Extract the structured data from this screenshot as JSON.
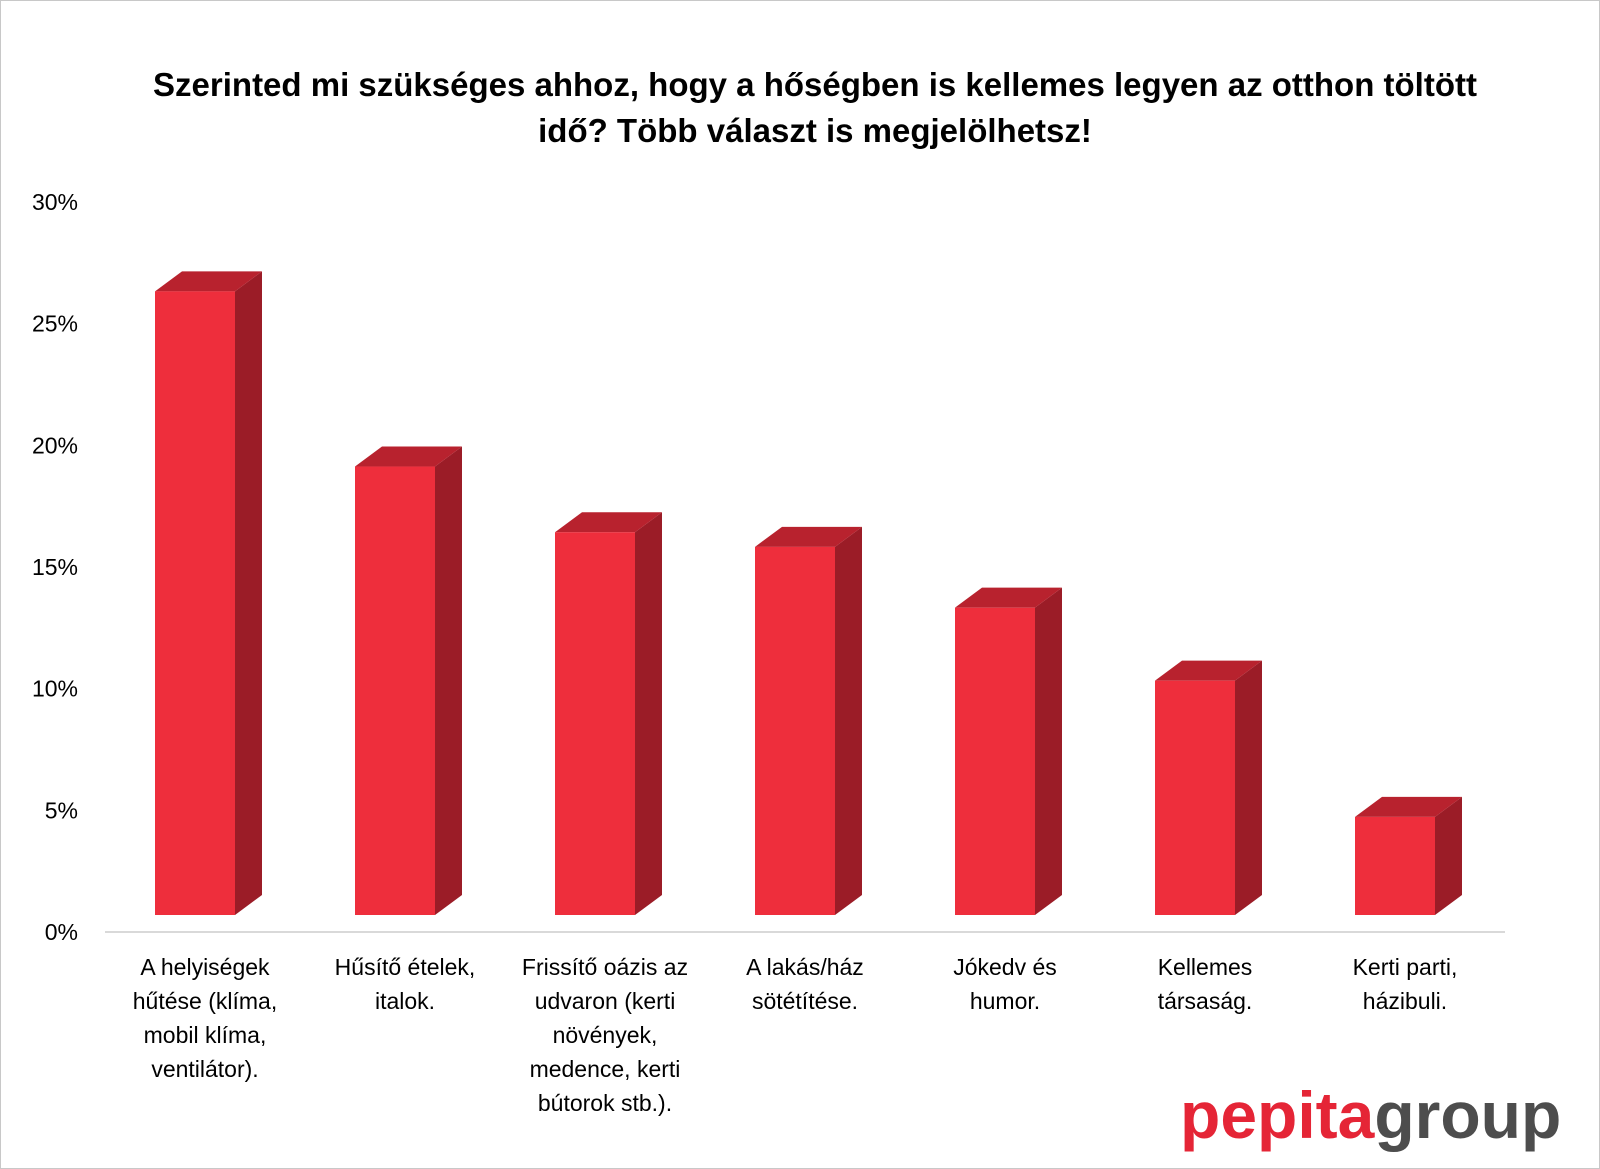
{
  "chart_data": {
    "type": "bar",
    "title": "Szerinted mi szükséges ahhoz, hogy a hőségben is kellemes legyen az otthon töltött idő? Több választ is megjelölhetsz!",
    "categories": [
      [
        "A helyiségek",
        "hűtése (klíma,",
        "mobil klíma,",
        "ventilátor)."
      ],
      [
        "Hűsítő ételek,",
        "italok."
      ],
      [
        "Frissítő oázis az",
        "udvaron (kerti",
        "növények,",
        "medence, kerti",
        "bútorok stb.)."
      ],
      [
        "A lakás/ház",
        "sötétítése."
      ],
      [
        "Jókedv és",
        "humor."
      ],
      [
        "Kellemes",
        "társaság."
      ],
      [
        "Kerti parti,",
        "házibuli."
      ]
    ],
    "values": [
      26,
      18.8,
      16.1,
      15.5,
      13,
      10,
      4.4
    ],
    "ylim": [
      0,
      30
    ],
    "yticks": [
      "0%",
      "5%",
      "10%",
      "15%",
      "20%",
      "25%",
      "30%"
    ],
    "colors": {
      "front": "#ee2e3c",
      "side": "#9b1c27",
      "top": "#b8222e",
      "axis": "#d9d9d9"
    }
  },
  "logo": {
    "part1": "pepita",
    "part2": "group"
  }
}
